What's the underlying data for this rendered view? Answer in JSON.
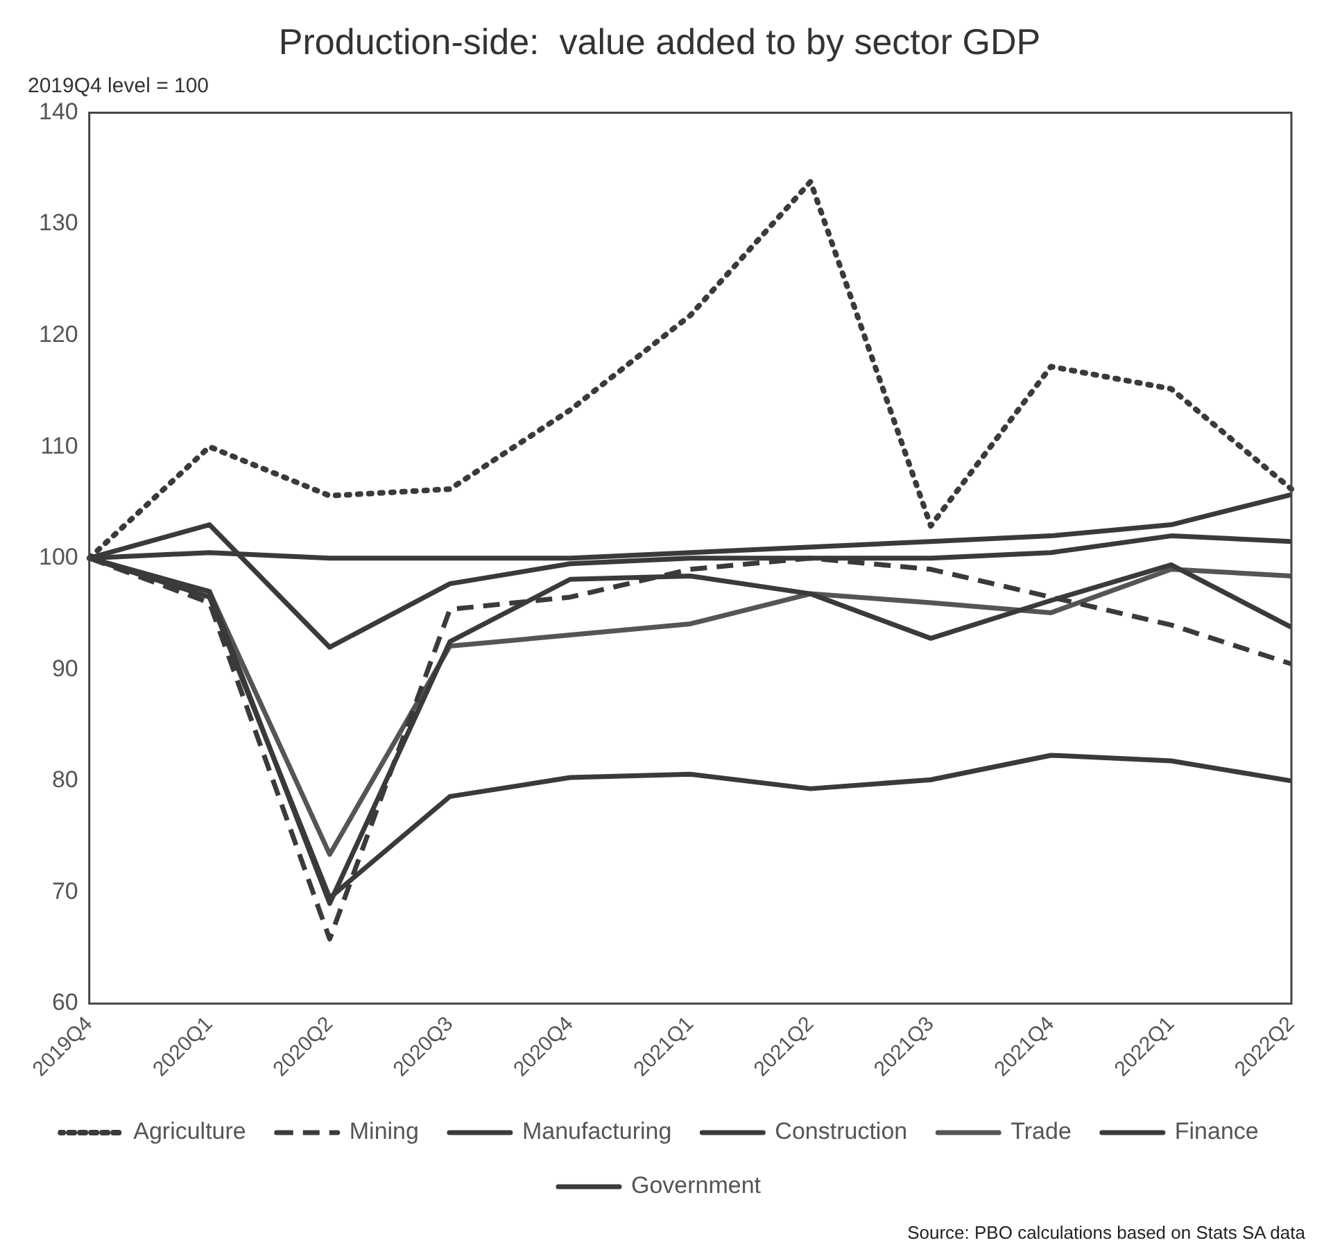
{
  "chart_data": {
    "type": "line",
    "title": "Production-side:  value added to by sector GDP",
    "subtitle": "2019Q4 level = 100",
    "categories": [
      "2019Q4",
      "2020Q1",
      "2020Q2",
      "2020Q3",
      "2020Q4",
      "2021Q1",
      "2021Q2",
      "2021Q3",
      "2021Q4",
      "2022Q1",
      "2022Q2"
    ],
    "series": [
      {
        "name": "Agriculture",
        "color": "#3a3a3a",
        "line_style": "dotted",
        "values": [
          100,
          110,
          105.6,
          106.2,
          113.3,
          121.8,
          133.8,
          102.9,
          117.2,
          115.2,
          106.2
        ]
      },
      {
        "name": "Mining",
        "color": "#3a3a3a",
        "line_style": "dashed",
        "values": [
          100,
          96,
          65.8,
          95.4,
          96.5,
          99,
          100,
          99,
          96.5,
          94,
          90.5
        ]
      },
      {
        "name": "Manufacturing",
        "color": "#3a3a3a",
        "line_style": "solid",
        "values": [
          100,
          97,
          69,
          92.5,
          98.1,
          98.4,
          96.8,
          92.8,
          96.2,
          99.4,
          93.8
        ]
      },
      {
        "name": "Construction",
        "color": "#3a3a3a",
        "line_style": "solid",
        "values": [
          100,
          96.5,
          69.5,
          78.6,
          80.3,
          80.6,
          79.3,
          80.1,
          82.3,
          81.8,
          80
        ]
      },
      {
        "name": "Trade",
        "color": "#555555",
        "line_style": "solid",
        "values": [
          100,
          97,
          73.4,
          92.1,
          93.1,
          94.1,
          96.8,
          96,
          95.1,
          99,
          98.4
        ]
      },
      {
        "name": "Finance",
        "color": "#3a3a3a",
        "line_style": "solid",
        "values": [
          100,
          103,
          92,
          97.7,
          99.5,
          100,
          100,
          100,
          100.5,
          102,
          101.5
        ]
      },
      {
        "name": "Government",
        "color": "#3a3a3a",
        "line_style": "solid",
        "values": [
          100,
          100.5,
          100,
          100,
          100,
          100.5,
          101,
          101.5,
          102,
          103,
          105.7
        ]
      }
    ],
    "ylim": [
      60,
      140
    ],
    "yticks": [
      60,
      70,
      80,
      90,
      100,
      110,
      120,
      130,
      140
    ],
    "grid": false,
    "legend": "bottom",
    "marker": "none",
    "annotations": [
      "Source: PBO calculations based on Stats SA data"
    ]
  }
}
